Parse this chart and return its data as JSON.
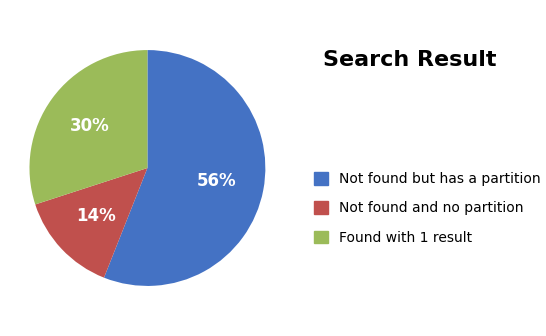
{
  "title": "Search Result",
  "slices": [
    56,
    14,
    30
  ],
  "labels": [
    "Not found but has a partition",
    "Not found and no partition",
    "Found with 1 result"
  ],
  "pct_labels": [
    "56%",
    "14%",
    "30%"
  ],
  "colors": [
    "#4472C4",
    "#C0504D",
    "#9BBB59"
  ],
  "startangle": 90,
  "title_fontsize": 16,
  "pct_fontsize": 12,
  "legend_fontsize": 10,
  "background_color": "#FFFFFF"
}
